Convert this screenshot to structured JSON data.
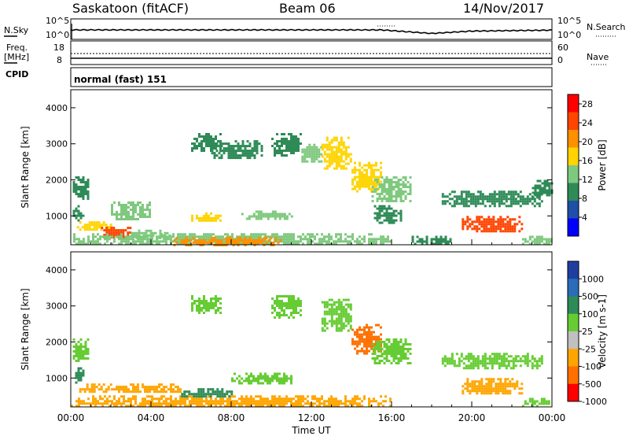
{
  "header": {
    "station": "Saskatoon (fitACF)",
    "beam": "Beam 06",
    "date": "14/Nov/2017"
  },
  "top_panels": {
    "nsky_label": "N.Sky",
    "nsky_ticks": [
      "10^5",
      "10^0"
    ],
    "nsearch_label": "N.Search",
    "nsearch_ticks": [
      "10^5",
      "10^0"
    ],
    "freq_label": "Freq.",
    "freq_unit": "[MHz]",
    "freq_ticks": [
      "18",
      "8"
    ],
    "nave_label": "Nave",
    "nave_ticks": [
      "60",
      "0"
    ],
    "cpid_label": "CPID",
    "cpid_value": "normal (fast) 151"
  },
  "chart_data": [
    {
      "type": "heatmap",
      "name": "power",
      "ylabel": "Slant Range [km]",
      "xlabel": "Time UT",
      "y_ticks": [
        "1000",
        "2000",
        "3000",
        "4000"
      ],
      "ylim": [
        200,
        4500
      ],
      "x_ticks": [
        "00:00",
        "04:00",
        "08:00",
        "12:00",
        "16:00",
        "20:00",
        "00:00"
      ],
      "xlim_hours": [
        0,
        24
      ],
      "colorbar_label": "Power [dB]",
      "colorbar_ticks": [
        "4",
        "8",
        "12",
        "16",
        "20",
        "24",
        "28"
      ],
      "colorbar_range": [
        0,
        30
      ],
      "colors": [
        "#0000ff",
        "#1f4fa8",
        "#2e8b57",
        "#7fc97f",
        "#ffd400",
        "#ff9000",
        "#ff4500",
        "#ff0000"
      ],
      "regions": [
        {
          "t0": 0.1,
          "t1": 0.9,
          "r0": 1500,
          "r1": 2100,
          "v": 9
        },
        {
          "t0": 0.1,
          "t1": 0.6,
          "r0": 900,
          "r1": 1300,
          "v": 11
        },
        {
          "t0": 0.3,
          "t1": 2.0,
          "r0": 600,
          "r1": 850,
          "v": 16
        },
        {
          "t0": 1.5,
          "t1": 3.0,
          "r0": 420,
          "r1": 700,
          "v": 24
        },
        {
          "t0": 0.0,
          "t1": 16.0,
          "r0": 200,
          "r1": 520,
          "v": 13
        },
        {
          "t0": 5.0,
          "t1": 10.5,
          "r0": 220,
          "r1": 420,
          "v": 22
        },
        {
          "t0": 2.0,
          "t1": 4.0,
          "r0": 900,
          "r1": 1400,
          "v": 12
        },
        {
          "t0": 3.0,
          "t1": 5.0,
          "r0": 420,
          "r1": 620,
          "v": 14
        },
        {
          "t0": 6.0,
          "t1": 7.5,
          "r0": 850,
          "r1": 1100,
          "v": 15
        },
        {
          "t0": 8.5,
          "t1": 11.0,
          "r0": 900,
          "r1": 1150,
          "v": 14
        },
        {
          "t0": 6.0,
          "t1": 7.5,
          "r0": 2800,
          "r1": 3300,
          "v": 10
        },
        {
          "t0": 7.0,
          "t1": 9.5,
          "r0": 2600,
          "r1": 3100,
          "v": 10
        },
        {
          "t0": 10.0,
          "t1": 11.5,
          "r0": 2700,
          "r1": 3300,
          "v": 10
        },
        {
          "t0": 11.5,
          "t1": 12.5,
          "r0": 2500,
          "r1": 3000,
          "v": 12
        },
        {
          "t0": 12.5,
          "t1": 14.0,
          "r0": 2300,
          "r1": 3200,
          "v": 17
        },
        {
          "t0": 14.0,
          "t1": 15.5,
          "r0": 1700,
          "r1": 2500,
          "v": 18
        },
        {
          "t0": 15.0,
          "t1": 17.0,
          "r0": 1400,
          "r1": 2100,
          "v": 13
        },
        {
          "t0": 15.0,
          "t1": 16.5,
          "r0": 800,
          "r1": 1300,
          "v": 11
        },
        {
          "t0": 17.0,
          "t1": 19.0,
          "r0": 200,
          "r1": 450,
          "v": 9
        },
        {
          "t0": 18.5,
          "t1": 23.5,
          "r0": 1300,
          "r1": 1700,
          "v": 10
        },
        {
          "t0": 19.5,
          "t1": 22.5,
          "r0": 550,
          "r1": 1000,
          "v": 26
        },
        {
          "t0": 23.0,
          "t1": 24.0,
          "r0": 1500,
          "r1": 2000,
          "v": 10
        },
        {
          "t0": 22.5,
          "t1": 24.0,
          "r0": 250,
          "r1": 450,
          "v": 13
        }
      ]
    },
    {
      "type": "heatmap",
      "name": "velocity",
      "ylabel": "Slant Range [km]",
      "xlabel": "Time UT",
      "y_ticks": [
        "1000",
        "2000",
        "3000",
        "4000"
      ],
      "ylim": [
        200,
        4500
      ],
      "x_ticks": [
        "00:00",
        "04:00",
        "08:00",
        "12:00",
        "16:00",
        "20:00",
        "00:00"
      ],
      "xlim_hours": [
        0,
        24
      ],
      "colorbar_label": "Velocity [m s-1]",
      "colorbar_ticks": [
        "1000",
        "500",
        "100",
        "25",
        "-25",
        "-100",
        "-500",
        "-1000"
      ],
      "colors": [
        "#1f3fa0",
        "#2a6cb8",
        "#2e8b57",
        "#66cc33",
        "#c0c0c0",
        "#ffa500",
        "#ff7000",
        "#ff0000"
      ],
      "regions": [
        {
          "t0": 0.1,
          "t1": 0.9,
          "r0": 1500,
          "r1": 2100,
          "v": 25
        },
        {
          "t0": 0.1,
          "t1": 0.6,
          "r0": 900,
          "r1": 1300,
          "v": 100
        },
        {
          "t0": 0.3,
          "t1": 2.0,
          "r0": 600,
          "r1": 850,
          "v": -100
        },
        {
          "t0": 0.0,
          "t1": 16.0,
          "r0": 200,
          "r1": 520,
          "v": -100
        },
        {
          "t0": 2.0,
          "t1": 5.5,
          "r0": 600,
          "r1": 850,
          "v": -100
        },
        {
          "t0": 5.5,
          "t1": 8.0,
          "r0": 480,
          "r1": 720,
          "v": 100
        },
        {
          "t0": 8.0,
          "t1": 11.0,
          "r0": 850,
          "r1": 1150,
          "v": 25
        },
        {
          "t0": 6.0,
          "t1": 7.5,
          "r0": 2800,
          "r1": 3300,
          "v": 25
        },
        {
          "t0": 10.0,
          "t1": 11.5,
          "r0": 2700,
          "r1": 3300,
          "v": 25
        },
        {
          "t0": 12.5,
          "t1": 14.0,
          "r0": 2300,
          "r1": 3200,
          "v": 25
        },
        {
          "t0": 14.0,
          "t1": 15.5,
          "r0": 1700,
          "r1": 2500,
          "v": -500
        },
        {
          "t0": 15.0,
          "t1": 17.0,
          "r0": 1400,
          "r1": 2100,
          "v": 25
        },
        {
          "t0": 18.5,
          "t1": 23.5,
          "r0": 1300,
          "r1": 1700,
          "v": 25
        },
        {
          "t0": 19.5,
          "t1": 22.5,
          "r0": 550,
          "r1": 1000,
          "v": -100
        },
        {
          "t0": 22.5,
          "t1": 24.0,
          "r0": 250,
          "r1": 450,
          "v": 25
        }
      ]
    }
  ]
}
